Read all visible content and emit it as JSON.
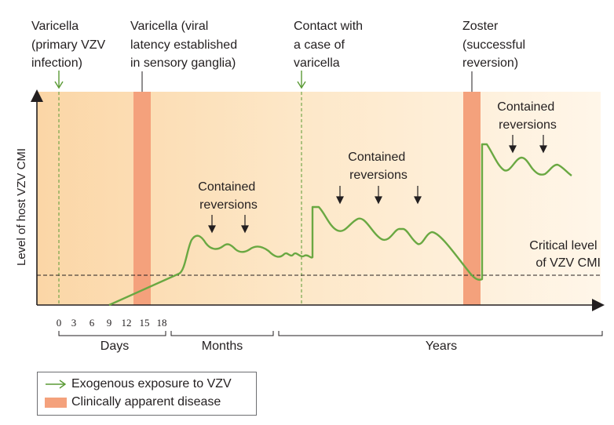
{
  "colors": {
    "green": "#5a9a35",
    "disease": "#f4a17c",
    "bg_left": "#fbd6a6",
    "bg_right": "#fff6e6"
  },
  "top_labels": [
    {
      "lines": [
        "Varicella",
        "(primary VZV",
        "infection)"
      ]
    },
    {
      "lines": [
        "Varicella (viral",
        "latency established",
        "in sensory ganglia)"
      ]
    },
    {
      "lines": [
        "Contact with",
        "a case of",
        "varicella"
      ]
    },
    {
      "lines": [
        "Zoster",
        "(successful",
        "reversion)"
      ]
    }
  ],
  "y_axis_label": "Level of host VZV CMI",
  "contained_reversions": [
    {
      "lines": [
        "Contained",
        "reversions"
      ]
    },
    {
      "lines": [
        "Contained",
        "reversions"
      ]
    },
    {
      "lines": [
        "Contained",
        "reversions"
      ]
    }
  ],
  "critical_level": {
    "lines": [
      "Critical level",
      "of VZV CMI"
    ]
  },
  "day_ticks": [
    "0",
    "3",
    "6",
    "9",
    "12",
    "15",
    "18"
  ],
  "period_labels": {
    "days": "Days",
    "months": "Months",
    "years": "Years"
  },
  "legend": {
    "exposure": "Exogenous exposure to VZV",
    "disease": "Clinically apparent disease"
  },
  "icons": [
    "exposure-arrow-icon",
    "reversion-arrow-icon"
  ]
}
